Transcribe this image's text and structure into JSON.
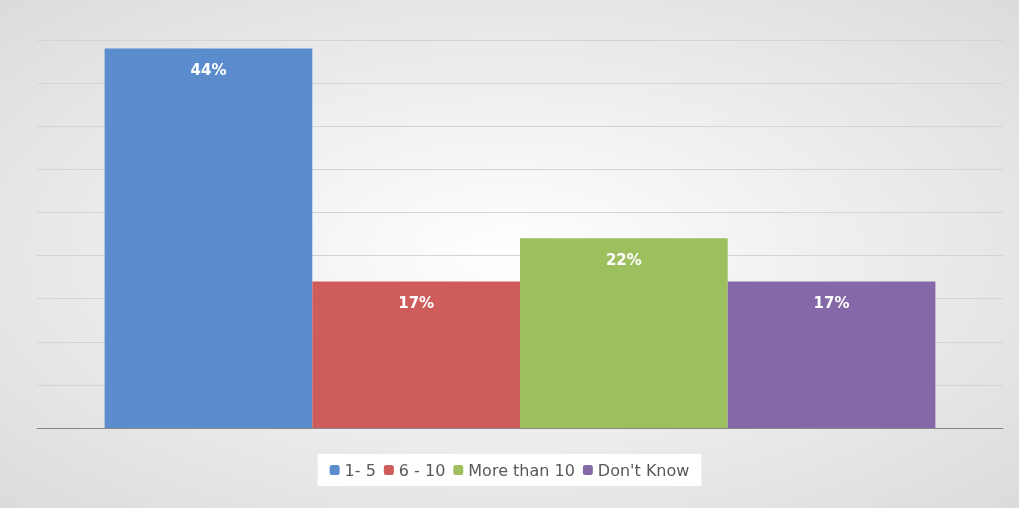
{
  "chart_data": {
    "type": "bar",
    "categories": [
      null
    ],
    "series": [
      {
        "name": "1- 5",
        "color": "#5b8cce",
        "values": [
          44
        ],
        "value_labels": [
          "44%"
        ]
      },
      {
        "name": "6 - 10",
        "color": "#cd5c5a",
        "values": [
          17
        ],
        "value_labels": [
          "17%"
        ]
      },
      {
        "name": "More than 10",
        "color": "#9dbf5e",
        "values": [
          22
        ],
        "value_labels": [
          "22%"
        ]
      },
      {
        "name": "Don't Know",
        "color": "#8568a8",
        "values": [
          17
        ],
        "value_labels": [
          "17%"
        ]
      }
    ],
    "grid": "y",
    "legend": "bottom",
    "tick_labels": false
  }
}
